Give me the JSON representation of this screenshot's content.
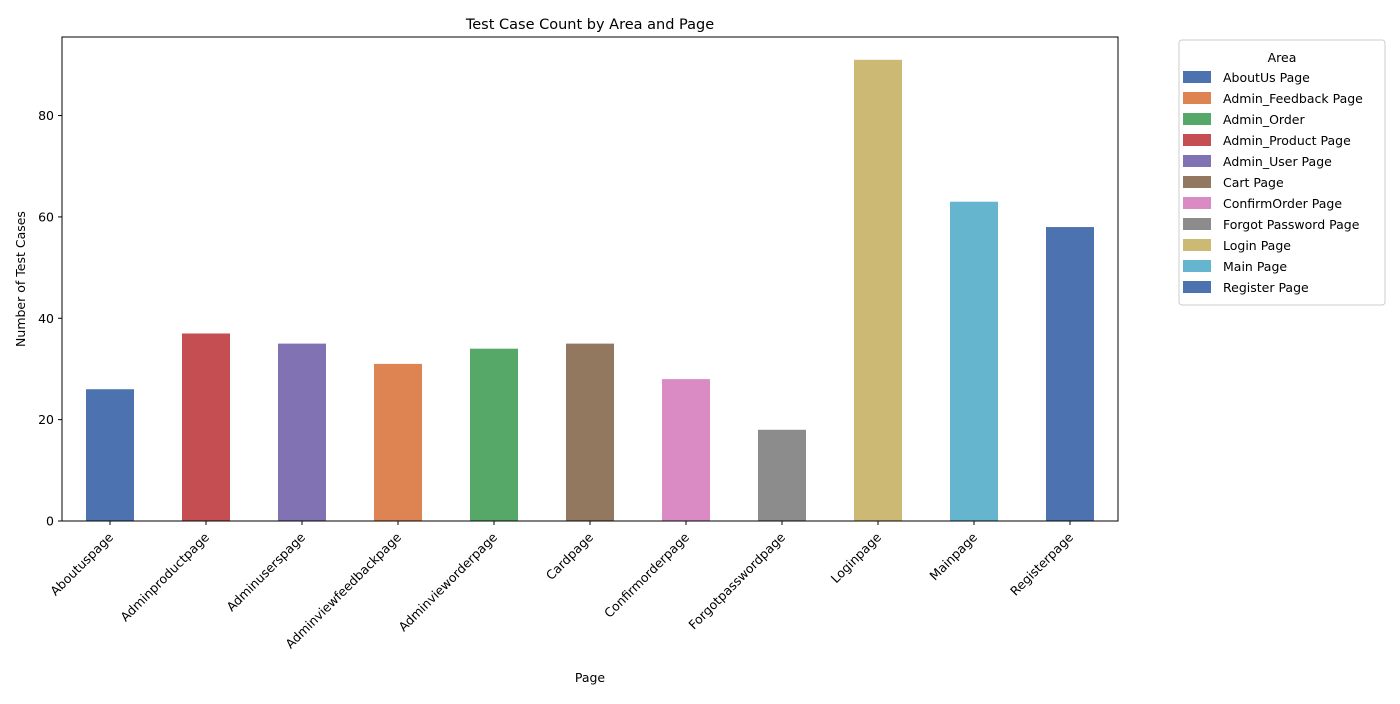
{
  "chart_data": {
    "type": "bar",
    "title": "Test Case Count by Area and Page",
    "xlabel": "Page",
    "ylabel": "Number of Test Cases",
    "ylim": [
      0,
      95.5
    ],
    "yticks": [
      0,
      20,
      40,
      60,
      80
    ],
    "grid": false,
    "legend_title": "Area",
    "legend_placement": "outside-top-right",
    "categories": [
      "Aboutuspage",
      "Adminproductpage",
      "Adminuserspage",
      "Adminviewfeedbackpage",
      "Adminvieworderpage",
      "Cardpage",
      "Confirmorderpage",
      "Forgotpasswordpage",
      "Loginpage",
      "Mainpage",
      "Registerpage"
    ],
    "series": [
      {
        "name": "AboutUs Page",
        "color": "#4c72b0",
        "values": [
          26,
          0,
          0,
          0,
          0,
          0,
          0,
          0,
          0,
          0,
          0
        ]
      },
      {
        "name": "Admin_Feedback Page",
        "color": "#dd8452",
        "values": [
          0,
          0,
          0,
          31,
          0,
          0,
          0,
          0,
          0,
          0,
          0
        ]
      },
      {
        "name": "Admin_Order",
        "color": "#55a868",
        "values": [
          0,
          0,
          0,
          0,
          34,
          0,
          0,
          0,
          0,
          0,
          0
        ]
      },
      {
        "name": "Admin_Product Page",
        "color": "#c44e52",
        "values": [
          0,
          37,
          0,
          0,
          0,
          0,
          0,
          0,
          0,
          0,
          0
        ]
      },
      {
        "name": "Admin_User Page",
        "color": "#8172b3",
        "values": [
          0,
          0,
          35,
          0,
          0,
          0,
          0,
          0,
          0,
          0,
          0
        ]
      },
      {
        "name": "Cart Page",
        "color": "#937860",
        "values": [
          0,
          0,
          0,
          0,
          0,
          35,
          0,
          0,
          0,
          0,
          0
        ]
      },
      {
        "name": "ConfirmOrder Page",
        "color": "#da8bc3",
        "values": [
          0,
          0,
          0,
          0,
          0,
          0,
          28,
          0,
          0,
          0,
          0
        ]
      },
      {
        "name": "Forgot Password Page",
        "color": "#8c8c8c",
        "values": [
          0,
          0,
          0,
          0,
          0,
          0,
          0,
          18,
          0,
          0,
          0
        ]
      },
      {
        "name": "Login Page",
        "color": "#ccb974",
        "values": [
          0,
          0,
          0,
          0,
          0,
          0,
          0,
          0,
          91,
          0,
          0
        ]
      },
      {
        "name": "Main Page",
        "color": "#64b5cd",
        "values": [
          0,
          0,
          0,
          0,
          0,
          0,
          0,
          0,
          0,
          63,
          0
        ]
      },
      {
        "name": "Register Page",
        "color": "#4c72b0",
        "values": [
          0,
          0,
          0,
          0,
          0,
          0,
          0,
          0,
          0,
          0,
          58
        ]
      }
    ]
  }
}
